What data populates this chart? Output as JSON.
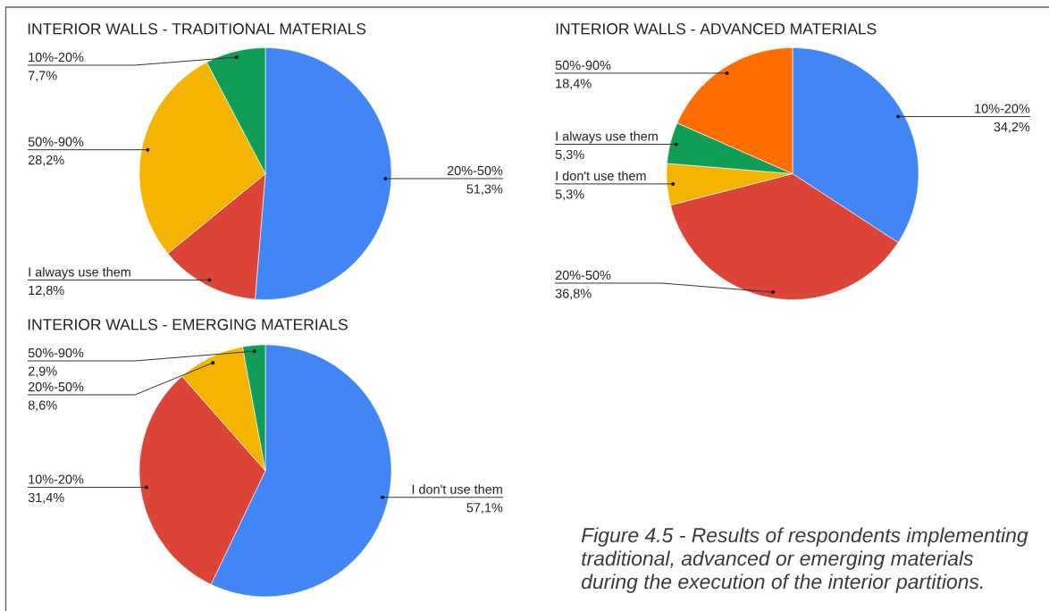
{
  "chart_data": [
    {
      "type": "pie",
      "title": "INTERIOR WALLS - TRADITIONAL MATERIALS",
      "categories": [
        "20%-50%",
        "I always use them",
        "50%-90%",
        "10%-20%"
      ],
      "values": [
        51.3,
        12.8,
        28.2,
        7.7
      ],
      "value_labels": [
        "51,3%",
        "12,8%",
        "28,2%",
        "7,7%"
      ],
      "colors": [
        "#4285f4",
        "#db4437",
        "#f4b400",
        "#0f9d58"
      ]
    },
    {
      "type": "pie",
      "title": "INTERIOR WALLS - ADVANCED MATERIALS",
      "categories": [
        "10%-20%",
        "20%-50%",
        "I don't use them",
        "I always use them",
        "50%-90%"
      ],
      "values": [
        34.2,
        36.8,
        5.3,
        5.3,
        18.4
      ],
      "value_labels": [
        "34,2%",
        "36,8%",
        "5,3%",
        "5,3%",
        "18,4%"
      ],
      "colors": [
        "#4285f4",
        "#db4437",
        "#f4b400",
        "#0f9d58",
        "#ff6d01"
      ]
    },
    {
      "type": "pie",
      "title": "INTERIOR WALLS - EMERGING MATERIALS",
      "categories": [
        "I don't use them",
        "10%-20%",
        "20%-50%",
        "50%-90%"
      ],
      "values": [
        57.1,
        31.4,
        8.6,
        2.9
      ],
      "value_labels": [
        "57,1%",
        "31,4%",
        "8,6%",
        "2,9%"
      ],
      "colors": [
        "#4285f4",
        "#db4437",
        "#f4b400",
        "#0f9d58"
      ],
      "annotations": [
        "Figure 4.5 - Results of respondents implementing",
        "traditional, advanced or emerging materials",
        "during the execution of the interior partitions."
      ]
    }
  ]
}
